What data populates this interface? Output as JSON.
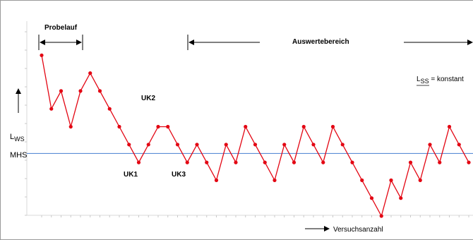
{
  "chart_data": {
    "type": "line",
    "series": [
      {
        "values": [
          9,
          6,
          7,
          5,
          7,
          8,
          7,
          6,
          5,
          4,
          3,
          4,
          5,
          5,
          4,
          3,
          4,
          3,
          2,
          4,
          3,
          5,
          4,
          3,
          2,
          4,
          3,
          5,
          4,
          3,
          5,
          4,
          3,
          2,
          1,
          0,
          2,
          1,
          3,
          2,
          4,
          3,
          5,
          4,
          3
        ],
        "color": "#e30613"
      }
    ],
    "reference_line": {
      "label": "MHS",
      "value": 3.5,
      "color": "#5b8ed6"
    },
    "y_reference_label": "L",
    "y_reference_sub": "WS",
    "x_axis_label": "Versuchsanzahl",
    "annotations": [
      {
        "text": "Probelauf"
      },
      {
        "text": "Auswertebereich"
      },
      {
        "text": "UK1"
      },
      {
        "text": "UK2"
      },
      {
        "text": "UK3"
      }
    ],
    "constant_note": {
      "main": "L",
      "sub": "SS",
      "rest": " = konstant"
    },
    "xlim": [
      0,
      45
    ],
    "ylim": [
      0,
      9
    ],
    "grid": false
  }
}
